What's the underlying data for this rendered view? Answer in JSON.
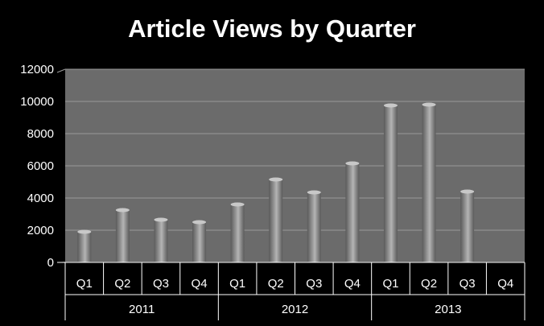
{
  "chart_data": {
    "type": "bar",
    "title": "Article Views by Quarter",
    "xlabel": "",
    "ylabel": "",
    "ylim": [
      0,
      12000
    ],
    "yticks": [
      0,
      2000,
      4000,
      6000,
      8000,
      10000,
      12000
    ],
    "grid": true,
    "legend": "none",
    "groups": [
      {
        "label": "2011",
        "categories": [
          "Q1",
          "Q2",
          "Q3",
          "Q4"
        ]
      },
      {
        "label": "2012",
        "categories": [
          "Q1",
          "Q2",
          "Q3",
          "Q4"
        ]
      },
      {
        "label": "2013",
        "categories": [
          "Q1",
          "Q2",
          "Q3",
          "Q4"
        ]
      }
    ],
    "categories": [
      "Q1",
      "Q2",
      "Q3",
      "Q4",
      "Q1",
      "Q2",
      "Q3",
      "Q4",
      "Q1",
      "Q2",
      "Q3",
      "Q4"
    ],
    "values": [
      1900,
      3250,
      2650,
      2500,
      3600,
      5150,
      4350,
      6150,
      9750,
      9800,
      4400,
      0
    ]
  },
  "colors": {
    "background": "#000000",
    "plot_area": "#6b6b6b",
    "gridline": "#9a9a9a",
    "bar_dark": "#5a5a5a",
    "bar_light": "#b4b4b4",
    "text": "#ffffff"
  }
}
